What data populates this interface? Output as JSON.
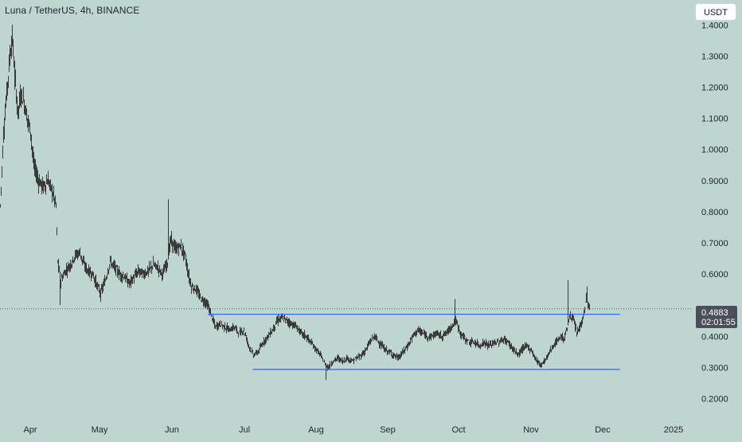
{
  "header": {
    "title": "Luna / TetherUS, 4h, BINANCE",
    "currency_button": "USDT"
  },
  "price_label": {
    "value": "0.4883",
    "countdown": "02:01:55"
  },
  "colors": {
    "background": "#bfd6d0",
    "candle": "#3a3a3a",
    "trendline": "#2962ff",
    "price_tag": "#4a4f5a"
  },
  "chart_data": {
    "type": "candlestick",
    "title": "Luna / TetherUS, 4h, BINANCE",
    "x_tick_labels": [
      "Apr",
      "May",
      "Jun",
      "Jul",
      "Aug",
      "Sep",
      "Oct",
      "Nov",
      "Dec",
      "2025"
    ],
    "y_tick_labels": [
      "1.4000",
      "1.3000",
      "1.2000",
      "1.1000",
      "1.0000",
      "0.9000",
      "0.8000",
      "0.7000",
      "0.6000",
      "0.4000",
      "0.3000",
      "0.2000"
    ],
    "y_ticks": [
      1.4,
      1.3,
      1.2,
      1.1,
      1.0,
      0.9,
      0.8,
      0.7,
      0.6,
      0.4,
      0.3,
      0.2
    ],
    "ylim": [
      0.15,
      1.48
    ],
    "last_price": 0.4883,
    "price_path": [
      [
        0,
        0.82
      ],
      [
        4,
        1.05
      ],
      [
        8,
        1.18
      ],
      [
        12,
        1.3
      ],
      [
        15,
        1.36
      ],
      [
        18,
        1.24
      ],
      [
        22,
        1.12
      ],
      [
        26,
        1.18
      ],
      [
        30,
        1.15
      ],
      [
        34,
        1.1
      ],
      [
        38,
        1.06
      ],
      [
        42,
        0.95
      ],
      [
        48,
        0.9
      ],
      [
        54,
        0.88
      ],
      [
        60,
        0.9
      ],
      [
        66,
        0.86
      ],
      [
        70,
        0.82
      ],
      [
        72,
        0.64
      ],
      [
        76,
        0.58
      ],
      [
        82,
        0.61
      ],
      [
        88,
        0.63
      ],
      [
        94,
        0.66
      ],
      [
        100,
        0.67
      ],
      [
        105,
        0.63
      ],
      [
        110,
        0.61
      ],
      [
        116,
        0.6
      ],
      [
        122,
        0.56
      ],
      [
        126,
        0.54
      ],
      [
        132,
        0.58
      ],
      [
        138,
        0.64
      ],
      [
        144,
        0.62
      ],
      [
        150,
        0.6
      ],
      [
        156,
        0.59
      ],
      [
        162,
        0.57
      ],
      [
        168,
        0.59
      ],
      [
        174,
        0.61
      ],
      [
        180,
        0.6
      ],
      [
        186,
        0.61
      ],
      [
        192,
        0.63
      ],
      [
        198,
        0.62
      ],
      [
        204,
        0.6
      ],
      [
        210,
        0.64
      ],
      [
        214,
        0.71
      ],
      [
        220,
        0.68
      ],
      [
        226,
        0.69
      ],
      [
        232,
        0.66
      ],
      [
        236,
        0.6
      ],
      [
        240,
        0.56
      ],
      [
        246,
        0.55
      ],
      [
        252,
        0.52
      ],
      [
        258,
        0.51
      ],
      [
        262,
        0.49
      ],
      [
        266,
        0.46
      ],
      [
        270,
        0.43
      ],
      [
        276,
        0.44
      ],
      [
        282,
        0.43
      ],
      [
        288,
        0.42
      ],
      [
        294,
        0.43
      ],
      [
        300,
        0.41
      ],
      [
        306,
        0.42
      ],
      [
        312,
        0.37
      ],
      [
        318,
        0.34
      ],
      [
        324,
        0.35
      ],
      [
        330,
        0.38
      ],
      [
        336,
        0.4
      ],
      [
        342,
        0.42
      ],
      [
        348,
        0.45
      ],
      [
        354,
        0.46
      ],
      [
        360,
        0.45
      ],
      [
        366,
        0.44
      ],
      [
        372,
        0.43
      ],
      [
        378,
        0.41
      ],
      [
        384,
        0.4
      ],
      [
        390,
        0.38
      ],
      [
        396,
        0.36
      ],
      [
        402,
        0.34
      ],
      [
        408,
        0.31
      ],
      [
        412,
        0.3
      ],
      [
        418,
        0.32
      ],
      [
        424,
        0.33
      ],
      [
        430,
        0.32
      ],
      [
        436,
        0.33
      ],
      [
        442,
        0.32
      ],
      [
        448,
        0.33
      ],
      [
        454,
        0.34
      ],
      [
        460,
        0.36
      ],
      [
        466,
        0.39
      ],
      [
        470,
        0.4
      ],
      [
        476,
        0.38
      ],
      [
        482,
        0.36
      ],
      [
        488,
        0.35
      ],
      [
        494,
        0.34
      ],
      [
        500,
        0.33
      ],
      [
        506,
        0.35
      ],
      [
        512,
        0.37
      ],
      [
        518,
        0.4
      ],
      [
        524,
        0.42
      ],
      [
        530,
        0.41
      ],
      [
        536,
        0.4
      ],
      [
        542,
        0.4
      ],
      [
        548,
        0.41
      ],
      [
        554,
        0.4
      ],
      [
        560,
        0.41
      ],
      [
        566,
        0.43
      ],
      [
        572,
        0.45
      ],
      [
        578,
        0.41
      ],
      [
        584,
        0.39
      ],
      [
        590,
        0.38
      ],
      [
        596,
        0.38
      ],
      [
        602,
        0.37
      ],
      [
        608,
        0.38
      ],
      [
        614,
        0.37
      ],
      [
        620,
        0.38
      ],
      [
        626,
        0.38
      ],
      [
        632,
        0.39
      ],
      [
        638,
        0.38
      ],
      [
        644,
        0.36
      ],
      [
        650,
        0.34
      ],
      [
        656,
        0.36
      ],
      [
        662,
        0.37
      ],
      [
        668,
        0.35
      ],
      [
        674,
        0.32
      ],
      [
        680,
        0.31
      ],
      [
        686,
        0.33
      ],
      [
        692,
        0.36
      ],
      [
        698,
        0.38
      ],
      [
        704,
        0.4
      ],
      [
        708,
        0.39
      ],
      [
        712,
        0.43
      ],
      [
        716,
        0.47
      ],
      [
        720,
        0.45
      ],
      [
        724,
        0.41
      ],
      [
        728,
        0.43
      ],
      [
        732,
        0.46
      ],
      [
        736,
        0.52
      ],
      [
        740,
        0.49
      ]
    ],
    "spike_highs": [
      [
        15,
        1.39
      ],
      [
        70,
        0.83
      ],
      [
        211,
        0.84
      ],
      [
        571,
        0.52
      ],
      [
        713,
        0.58
      ],
      [
        737,
        0.56
      ]
    ],
    "spike_lows": [
      [
        75,
        0.5
      ],
      [
        126,
        0.51
      ],
      [
        409,
        0.26
      ],
      [
        678,
        0.3
      ]
    ],
    "horizontal_lines": [
      {
        "value": 0.4708,
        "x_start_fraction": 0.3,
        "x_end_fraction": 0.895
      },
      {
        "value": 0.2935,
        "x_start_fraction": 0.365,
        "x_end_fraction": 0.895
      }
    ]
  }
}
